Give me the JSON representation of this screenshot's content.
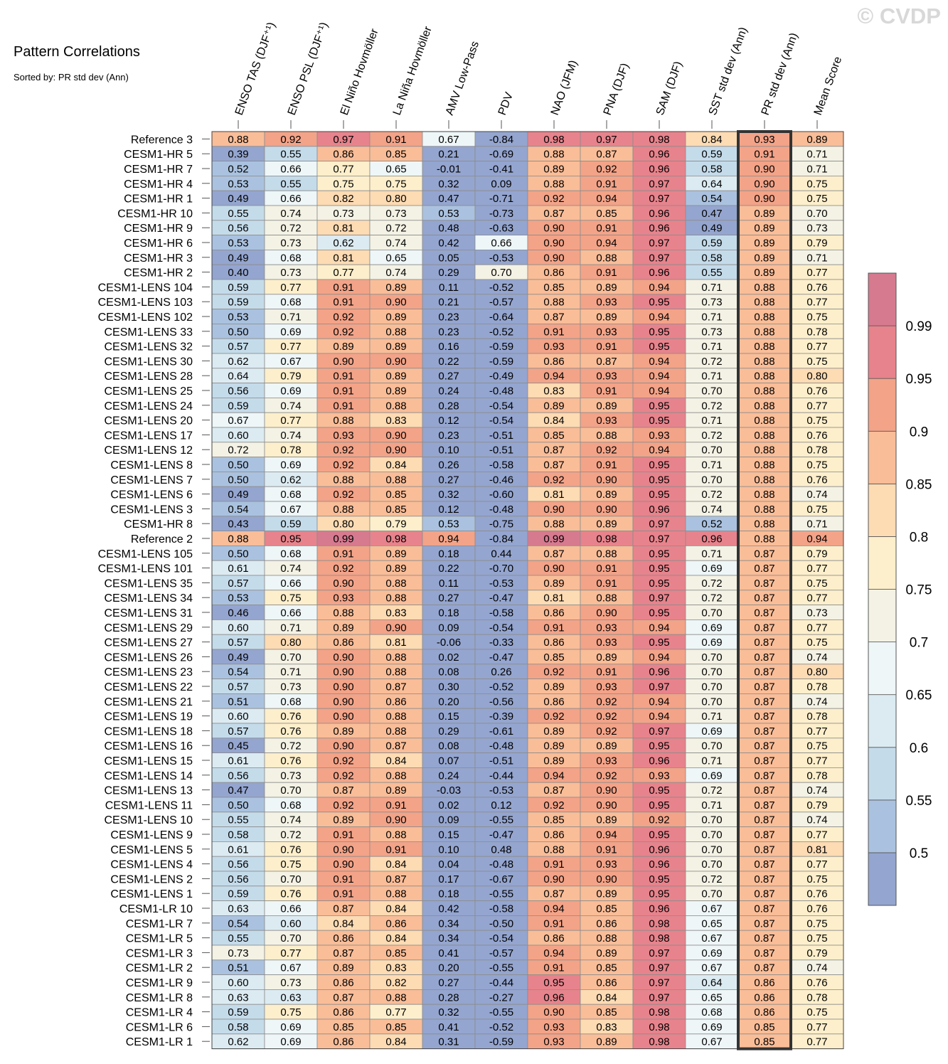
{
  "chart_data": {
    "type": "heatmap",
    "title": "Pattern Correlations",
    "subtitle": "Sorted by: PR std dev (Ann)",
    "watermark": "© CVDP",
    "columns": [
      "ENSO TAS (DJF⁺¹)",
      "ENSO PSL (DJF⁺¹)",
      "El Niño Hovmöller",
      "La Niña Hovmöller",
      "AMV Low-Pass",
      "PDV",
      "NAO (JFM)",
      "PNA (DJF)",
      "SAM (DJF)",
      "SST std dev (Ann)",
      "PR std dev (Ann)",
      "Mean Score"
    ],
    "highlighted_column": "PR std dev (Ann)",
    "rows": [
      "Reference 3",
      "CESM1-HR 5",
      "CESM1-HR 7",
      "CESM1-HR 4",
      "CESM1-HR 1",
      "CESM1-HR 10",
      "CESM1-HR 9",
      "CESM1-HR 6",
      "CESM1-HR 3",
      "CESM1-HR 2",
      "CESM1-LENS 104",
      "CESM1-LENS 103",
      "CESM1-LENS 102",
      "CESM1-LENS 33",
      "CESM1-LENS 32",
      "CESM1-LENS 30",
      "CESM1-LENS 28",
      "CESM1-LENS 25",
      "CESM1-LENS 24",
      "CESM1-LENS 20",
      "CESM1-LENS 17",
      "CESM1-LENS 12",
      "CESM1-LENS 8",
      "CESM1-LENS 7",
      "CESM1-LENS 6",
      "CESM1-LENS 3",
      "CESM1-HR 8",
      "Reference 2",
      "CESM1-LENS 105",
      "CESM1-LENS 101",
      "CESM1-LENS 35",
      "CESM1-LENS 34",
      "CESM1-LENS 31",
      "CESM1-LENS 29",
      "CESM1-LENS 27",
      "CESM1-LENS 26",
      "CESM1-LENS 23",
      "CESM1-LENS 22",
      "CESM1-LENS 21",
      "CESM1-LENS 19",
      "CESM1-LENS 18",
      "CESM1-LENS 16",
      "CESM1-LENS 15",
      "CESM1-LENS 14",
      "CESM1-LENS 13",
      "CESM1-LENS 11",
      "CESM1-LENS 10",
      "CESM1-LENS 9",
      "CESM1-LENS 5",
      "CESM1-LENS 4",
      "CESM1-LENS 2",
      "CESM1-LENS 1",
      "CESM1-LR 10",
      "CESM1-LR 7",
      "CESM1-LR 5",
      "CESM1-LR 3",
      "CESM1-LR 2",
      "CESM1-LR 9",
      "CESM1-LR 8",
      "CESM1-LR 4",
      "CESM1-LR 6",
      "CESM1-LR 1"
    ],
    "values": [
      [
        "0.88",
        "0.92",
        "0.97",
        "0.91",
        "0.67",
        "-0.84",
        "0.98",
        "0.97",
        "0.98",
        "0.84",
        "0.93",
        "0.89"
      ],
      [
        "0.39",
        "0.55",
        "0.86",
        "0.85",
        "0.21",
        "-0.69",
        "0.88",
        "0.87",
        "0.96",
        "0.59",
        "0.91",
        "0.71"
      ],
      [
        "0.52",
        "0.66",
        "0.77",
        "0.65",
        "-0.01",
        "-0.41",
        "0.89",
        "0.92",
        "0.96",
        "0.58",
        "0.90",
        "0.71"
      ],
      [
        "0.53",
        "0.55",
        "0.75",
        "0.75",
        "0.32",
        "0.09",
        "0.88",
        "0.91",
        "0.97",
        "0.64",
        "0.90",
        "0.75"
      ],
      [
        "0.49",
        "0.66",
        "0.82",
        "0.80",
        "0.47",
        "-0.71",
        "0.92",
        "0.94",
        "0.97",
        "0.54",
        "0.90",
        "0.75"
      ],
      [
        "0.55",
        "0.74",
        "0.73",
        "0.73",
        "0.53",
        "-0.73",
        "0.87",
        "0.85",
        "0.96",
        "0.47",
        "0.89",
        "0.70"
      ],
      [
        "0.56",
        "0.72",
        "0.81",
        "0.72",
        "0.48",
        "-0.63",
        "0.90",
        "0.91",
        "0.96",
        "0.49",
        "0.89",
        "0.73"
      ],
      [
        "0.53",
        "0.73",
        "0.62",
        "0.74",
        "0.42",
        "0.66",
        "0.90",
        "0.94",
        "0.97",
        "0.59",
        "0.89",
        "0.79"
      ],
      [
        "0.49",
        "0.68",
        "0.81",
        "0.65",
        "0.05",
        "-0.53",
        "0.90",
        "0.88",
        "0.97",
        "0.58",
        "0.89",
        "0.71"
      ],
      [
        "0.40",
        "0.73",
        "0.77",
        "0.74",
        "0.29",
        "0.70",
        "0.86",
        "0.91",
        "0.96",
        "0.55",
        "0.89",
        "0.77"
      ],
      [
        "0.59",
        "0.77",
        "0.91",
        "0.89",
        "0.11",
        "-0.52",
        "0.85",
        "0.89",
        "0.94",
        "0.71",
        "0.88",
        "0.76"
      ],
      [
        "0.59",
        "0.68",
        "0.91",
        "0.90",
        "0.21",
        "-0.57",
        "0.88",
        "0.93",
        "0.95",
        "0.73",
        "0.88",
        "0.77"
      ],
      [
        "0.53",
        "0.71",
        "0.92",
        "0.89",
        "0.23",
        "-0.64",
        "0.87",
        "0.89",
        "0.94",
        "0.71",
        "0.88",
        "0.75"
      ],
      [
        "0.50",
        "0.69",
        "0.92",
        "0.88",
        "0.23",
        "-0.52",
        "0.91",
        "0.93",
        "0.95",
        "0.73",
        "0.88",
        "0.78"
      ],
      [
        "0.57",
        "0.77",
        "0.89",
        "0.89",
        "0.16",
        "-0.59",
        "0.93",
        "0.91",
        "0.95",
        "0.71",
        "0.88",
        "0.77"
      ],
      [
        "0.62",
        "0.67",
        "0.90",
        "0.90",
        "0.22",
        "-0.59",
        "0.86",
        "0.87",
        "0.94",
        "0.72",
        "0.88",
        "0.75"
      ],
      [
        "0.64",
        "0.79",
        "0.91",
        "0.89",
        "0.27",
        "-0.49",
        "0.94",
        "0.93",
        "0.94",
        "0.71",
        "0.88",
        "0.80"
      ],
      [
        "0.56",
        "0.69",
        "0.91",
        "0.89",
        "0.24",
        "-0.48",
        "0.83",
        "0.91",
        "0.94",
        "0.70",
        "0.88",
        "0.76"
      ],
      [
        "0.59",
        "0.74",
        "0.91",
        "0.88",
        "0.28",
        "-0.54",
        "0.89",
        "0.89",
        "0.95",
        "0.72",
        "0.88",
        "0.77"
      ],
      [
        "0.67",
        "0.77",
        "0.88",
        "0.83",
        "0.12",
        "-0.54",
        "0.84",
        "0.93",
        "0.95",
        "0.71",
        "0.88",
        "0.75"
      ],
      [
        "0.60",
        "0.74",
        "0.93",
        "0.90",
        "0.23",
        "-0.51",
        "0.85",
        "0.88",
        "0.93",
        "0.72",
        "0.88",
        "0.76"
      ],
      [
        "0.72",
        "0.78",
        "0.92",
        "0.90",
        "0.10",
        "-0.51",
        "0.87",
        "0.92",
        "0.94",
        "0.70",
        "0.88",
        "0.78"
      ],
      [
        "0.50",
        "0.69",
        "0.92",
        "0.84",
        "0.26",
        "-0.58",
        "0.87",
        "0.91",
        "0.95",
        "0.71",
        "0.88",
        "0.75"
      ],
      [
        "0.50",
        "0.62",
        "0.88",
        "0.88",
        "0.27",
        "-0.46",
        "0.92",
        "0.90",
        "0.95",
        "0.70",
        "0.88",
        "0.76"
      ],
      [
        "0.49",
        "0.68",
        "0.92",
        "0.85",
        "0.32",
        "-0.60",
        "0.81",
        "0.89",
        "0.95",
        "0.72",
        "0.88",
        "0.74"
      ],
      [
        "0.54",
        "0.67",
        "0.88",
        "0.85",
        "0.12",
        "-0.48",
        "0.90",
        "0.90",
        "0.96",
        "0.74",
        "0.88",
        "0.75"
      ],
      [
        "0.43",
        "0.59",
        "0.80",
        "0.79",
        "0.53",
        "-0.75",
        "0.88",
        "0.89",
        "0.97",
        "0.52",
        "0.88",
        "0.71"
      ],
      [
        "0.88",
        "0.95",
        "0.99",
        "0.98",
        "0.94",
        "-0.84",
        "0.99",
        "0.98",
        "0.97",
        "0.96",
        "0.88",
        "0.94"
      ],
      [
        "0.50",
        "0.68",
        "0.91",
        "0.89",
        "0.18",
        "0.44",
        "0.87",
        "0.88",
        "0.95",
        "0.71",
        "0.87",
        "0.79"
      ],
      [
        "0.61",
        "0.74",
        "0.92",
        "0.89",
        "0.22",
        "-0.70",
        "0.90",
        "0.91",
        "0.95",
        "0.69",
        "0.87",
        "0.77"
      ],
      [
        "0.57",
        "0.66",
        "0.90",
        "0.88",
        "0.11",
        "-0.53",
        "0.89",
        "0.91",
        "0.95",
        "0.72",
        "0.87",
        "0.75"
      ],
      [
        "0.53",
        "0.75",
        "0.93",
        "0.88",
        "0.27",
        "-0.47",
        "0.81",
        "0.88",
        "0.97",
        "0.72",
        "0.87",
        "0.77"
      ],
      [
        "0.46",
        "0.66",
        "0.88",
        "0.83",
        "0.18",
        "-0.58",
        "0.86",
        "0.90",
        "0.95",
        "0.70",
        "0.87",
        "0.73"
      ],
      [
        "0.60",
        "0.71",
        "0.89",
        "0.90",
        "0.09",
        "-0.54",
        "0.91",
        "0.93",
        "0.94",
        "0.69",
        "0.87",
        "0.77"
      ],
      [
        "0.57",
        "0.80",
        "0.86",
        "0.81",
        "-0.06",
        "-0.33",
        "0.86",
        "0.93",
        "0.95",
        "0.69",
        "0.87",
        "0.75"
      ],
      [
        "0.49",
        "0.70",
        "0.90",
        "0.88",
        "0.02",
        "-0.47",
        "0.85",
        "0.89",
        "0.94",
        "0.70",
        "0.87",
        "0.74"
      ],
      [
        "0.54",
        "0.71",
        "0.90",
        "0.88",
        "0.08",
        "0.26",
        "0.92",
        "0.91",
        "0.96",
        "0.70",
        "0.87",
        "0.80"
      ],
      [
        "0.57",
        "0.73",
        "0.90",
        "0.87",
        "0.30",
        "-0.52",
        "0.89",
        "0.93",
        "0.97",
        "0.70",
        "0.87",
        "0.78"
      ],
      [
        "0.51",
        "0.68",
        "0.90",
        "0.86",
        "0.20",
        "-0.56",
        "0.86",
        "0.92",
        "0.94",
        "0.70",
        "0.87",
        "0.74"
      ],
      [
        "0.60",
        "0.76",
        "0.90",
        "0.88",
        "0.15",
        "-0.39",
        "0.92",
        "0.92",
        "0.94",
        "0.71",
        "0.87",
        "0.78"
      ],
      [
        "0.57",
        "0.76",
        "0.89",
        "0.88",
        "0.29",
        "-0.61",
        "0.89",
        "0.92",
        "0.97",
        "0.69",
        "0.87",
        "0.77"
      ],
      [
        "0.45",
        "0.72",
        "0.90",
        "0.87",
        "0.08",
        "-0.48",
        "0.89",
        "0.89",
        "0.95",
        "0.70",
        "0.87",
        "0.75"
      ],
      [
        "0.61",
        "0.76",
        "0.92",
        "0.84",
        "0.07",
        "-0.51",
        "0.89",
        "0.93",
        "0.96",
        "0.71",
        "0.87",
        "0.77"
      ],
      [
        "0.56",
        "0.73",
        "0.92",
        "0.88",
        "0.24",
        "-0.44",
        "0.94",
        "0.92",
        "0.93",
        "0.69",
        "0.87",
        "0.78"
      ],
      [
        "0.47",
        "0.70",
        "0.87",
        "0.89",
        "-0.03",
        "-0.53",
        "0.87",
        "0.90",
        "0.95",
        "0.72",
        "0.87",
        "0.74"
      ],
      [
        "0.50",
        "0.68",
        "0.92",
        "0.91",
        "0.02",
        "0.12",
        "0.92",
        "0.90",
        "0.95",
        "0.71",
        "0.87",
        "0.79"
      ],
      [
        "0.55",
        "0.74",
        "0.89",
        "0.90",
        "0.09",
        "-0.55",
        "0.85",
        "0.89",
        "0.92",
        "0.70",
        "0.87",
        "0.74"
      ],
      [
        "0.58",
        "0.72",
        "0.91",
        "0.88",
        "0.15",
        "-0.47",
        "0.86",
        "0.94",
        "0.95",
        "0.70",
        "0.87",
        "0.77"
      ],
      [
        "0.61",
        "0.76",
        "0.90",
        "0.91",
        "0.10",
        "0.48",
        "0.88",
        "0.91",
        "0.96",
        "0.70",
        "0.87",
        "0.81"
      ],
      [
        "0.56",
        "0.75",
        "0.90",
        "0.84",
        "0.04",
        "-0.48",
        "0.91",
        "0.93",
        "0.96",
        "0.70",
        "0.87",
        "0.77"
      ],
      [
        "0.56",
        "0.70",
        "0.91",
        "0.87",
        "0.17",
        "-0.67",
        "0.90",
        "0.90",
        "0.95",
        "0.72",
        "0.87",
        "0.75"
      ],
      [
        "0.59",
        "0.76",
        "0.91",
        "0.88",
        "0.18",
        "-0.55",
        "0.87",
        "0.89",
        "0.95",
        "0.70",
        "0.87",
        "0.76"
      ],
      [
        "0.63",
        "0.66",
        "0.87",
        "0.84",
        "0.42",
        "-0.58",
        "0.94",
        "0.85",
        "0.96",
        "0.67",
        "0.87",
        "0.76"
      ],
      [
        "0.54",
        "0.60",
        "0.84",
        "0.86",
        "0.34",
        "-0.50",
        "0.91",
        "0.86",
        "0.98",
        "0.65",
        "0.87",
        "0.75"
      ],
      [
        "0.55",
        "0.70",
        "0.86",
        "0.84",
        "0.34",
        "-0.54",
        "0.86",
        "0.88",
        "0.98",
        "0.67",
        "0.87",
        "0.75"
      ],
      [
        "0.73",
        "0.77",
        "0.87",
        "0.85",
        "0.41",
        "-0.57",
        "0.94",
        "0.89",
        "0.97",
        "0.69",
        "0.87",
        "0.79"
      ],
      [
        "0.51",
        "0.67",
        "0.89",
        "0.83",
        "0.20",
        "-0.55",
        "0.91",
        "0.85",
        "0.97",
        "0.67",
        "0.87",
        "0.74"
      ],
      [
        "0.60",
        "0.73",
        "0.86",
        "0.82",
        "0.27",
        "-0.44",
        "0.95",
        "0.86",
        "0.97",
        "0.64",
        "0.86",
        "0.76"
      ],
      [
        "0.63",
        "0.63",
        "0.87",
        "0.88",
        "0.28",
        "-0.27",
        "0.96",
        "0.84",
        "0.97",
        "0.65",
        "0.86",
        "0.78"
      ],
      [
        "0.59",
        "0.75",
        "0.86",
        "0.77",
        "0.32",
        "-0.55",
        "0.90",
        "0.85",
        "0.98",
        "0.68",
        "0.86",
        "0.75"
      ],
      [
        "0.58",
        "0.69",
        "0.85",
        "0.85",
        "0.41",
        "-0.52",
        "0.93",
        "0.83",
        "0.98",
        "0.69",
        "0.85",
        "0.77"
      ],
      [
        "0.62",
        "0.69",
        "0.86",
        "0.84",
        "0.31",
        "-0.59",
        "0.93",
        "0.89",
        "0.98",
        "0.67",
        "0.85",
        "0.77"
      ]
    ],
    "colorbar": {
      "tick_labels": [
        "0.5",
        "0.55",
        "0.6",
        "0.65",
        "0.7",
        "0.75",
        "0.8",
        "0.85",
        "0.9",
        "0.95",
        "0.99"
      ],
      "bin_edges": [
        0.5,
        0.55,
        0.6,
        0.65,
        0.7,
        0.75,
        0.8,
        0.85,
        0.9,
        0.95,
        0.99
      ],
      "colors": [
        "#94a5cf",
        "#aac2df",
        "#c4dbea",
        "#dcebf2",
        "#eef6f7",
        "#f4f2e4",
        "#fdefcb",
        "#fddbb3",
        "#f9bd98",
        "#f3a388",
        "#e7838c",
        "#d67a90"
      ]
    }
  }
}
